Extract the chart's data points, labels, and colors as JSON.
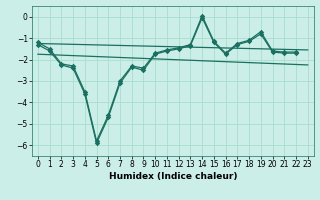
{
  "xlabel": "Humidex (Indice chaleur)",
  "bg_color": "#cceee8",
  "grid_color": "#aaddcc",
  "line_color": "#1a7060",
  "xlim": [
    -0.5,
    23.5
  ],
  "ylim": [
    -6.5,
    0.5
  ],
  "xticks": [
    0,
    1,
    2,
    3,
    4,
    5,
    6,
    7,
    8,
    9,
    10,
    11,
    12,
    13,
    14,
    15,
    16,
    17,
    18,
    19,
    20,
    21,
    22,
    23
  ],
  "yticks": [
    0,
    -1,
    -2,
    -3,
    -4,
    -5,
    -6
  ],
  "data_x": [
    0,
    1,
    2,
    3,
    4,
    5,
    6,
    7,
    8,
    9,
    10,
    11,
    12,
    13,
    14,
    15,
    16,
    17,
    18,
    19,
    20,
    21,
    22
  ],
  "line1_y": [
    -1.2,
    -1.5,
    -2.2,
    -2.3,
    -3.5,
    -5.8,
    -4.6,
    -3.0,
    -2.3,
    -2.4,
    -1.7,
    -1.55,
    -1.45,
    -1.3,
    0.05,
    -1.15,
    -1.7,
    -1.25,
    -1.1,
    -0.7,
    -1.6,
    -1.65,
    -1.65
  ],
  "line2_y": [
    -1.3,
    -1.6,
    -2.25,
    -2.4,
    -3.6,
    -5.9,
    -4.7,
    -3.1,
    -2.35,
    -2.5,
    -1.75,
    -1.6,
    -1.5,
    -1.35,
    -0.05,
    -1.2,
    -1.75,
    -1.3,
    -1.15,
    -0.8,
    -1.65,
    -1.7,
    -1.7
  ],
  "trend1_x": [
    0,
    23
  ],
  "trend1_y": [
    -1.25,
    -1.55
  ],
  "trend2_x": [
    0,
    23
  ],
  "trend2_y": [
    -1.75,
    -2.25
  ],
  "xlabel_fontsize": 6.5,
  "tick_fontsize": 5.5
}
